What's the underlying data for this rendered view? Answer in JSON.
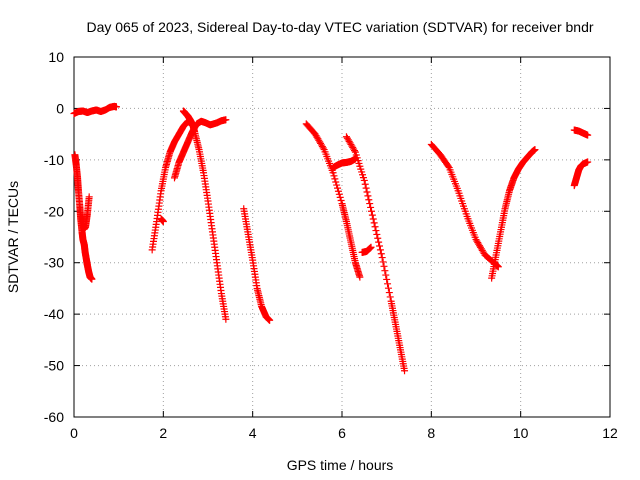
{
  "chart_data": {
    "type": "scatter",
    "title": "Day 065 of 2023, Sidereal Day-to-day VTEC variation (SDTVAR) for receiver bndr",
    "xlabel": "GPS time / hours",
    "ylabel": "SDTVAR / TECUs",
    "xlim": [
      0,
      12
    ],
    "ylim": [
      -60,
      10
    ],
    "xticks": [
      0,
      2,
      4,
      6,
      8,
      10,
      12
    ],
    "yticks": [
      10,
      0,
      -10,
      -20,
      -30,
      -40,
      -50,
      -60
    ],
    "grid": true,
    "marker": "+",
    "color": "#ff0000",
    "series": [
      {
        "x": [
          0.0,
          0.1,
          0.2,
          0.3,
          0.4,
          0.5,
          0.6,
          0.7,
          0.8,
          0.9,
          0.95
        ],
        "y": [
          -1.0,
          -0.6,
          -0.5,
          -0.8,
          -0.5,
          -0.3,
          -0.6,
          -0.3,
          0.2,
          0.4,
          0.3
        ]
      },
      {
        "x": [
          0.02,
          0.05,
          0.08,
          0.1,
          0.13,
          0.15,
          0.18,
          0.2,
          0.23,
          0.25,
          0.28,
          0.3,
          0.33,
          0.36,
          0.4
        ],
        "y": [
          -9.0,
          -11.0,
          -13.5,
          -16.0,
          -19.0,
          -21.5,
          -24.0,
          -25.5,
          -26.5,
          -28.0,
          -29.5,
          -30.5,
          -31.8,
          -32.8,
          -33.2
        ]
      },
      {
        "x": [
          0.18,
          0.22,
          0.26,
          0.3,
          0.34
        ],
        "y": [
          -21.0,
          -23.5,
          -23.0,
          -20.5,
          -17.2
        ]
      },
      {
        "x": [
          1.75,
          1.85,
          1.95,
          2.05,
          2.15,
          2.25,
          2.35,
          2.45,
          2.55,
          2.6
        ],
        "y": [
          -27.5,
          -22.0,
          -16.0,
          -11.5,
          -8.5,
          -6.5,
          -5.0,
          -3.5,
          -2.5,
          -2.8
        ]
      },
      {
        "x": [
          1.95,
          2.0
        ],
        "y": [
          -21.5,
          -22.0
        ]
      },
      {
        "x": [
          2.25,
          2.35,
          2.45,
          2.55,
          2.65,
          2.75,
          2.85,
          2.95,
          3.05,
          3.2,
          3.3,
          3.4
        ],
        "y": [
          -13.5,
          -10.5,
          -8.5,
          -6.5,
          -4.5,
          -3.0,
          -2.5,
          -2.8,
          -3.2,
          -2.8,
          -2.4,
          -2.2
        ]
      },
      {
        "x": [
          2.45,
          2.5,
          2.55,
          2.6,
          2.65,
          2.7,
          2.8,
          2.9,
          3.0,
          3.1,
          3.2,
          3.3,
          3.4
        ],
        "y": [
          -0.5,
          -1.0,
          -1.5,
          -2.2,
          -3.0,
          -4.5,
          -8.0,
          -12.5,
          -18.0,
          -24.0,
          -30.0,
          -36.0,
          -41.0
        ]
      },
      {
        "x": [
          3.8,
          3.9,
          4.0,
          4.1,
          4.2,
          4.3,
          4.38
        ],
        "y": [
          -19.5,
          -24.5,
          -29.5,
          -35.0,
          -38.5,
          -40.5,
          -41.2
        ]
      },
      {
        "x": [
          5.2,
          5.4,
          5.6,
          5.8,
          6.0,
          6.1,
          6.2,
          6.3,
          6.4
        ],
        "y": [
          -3.0,
          -5.0,
          -8.0,
          -12.5,
          -18.5,
          -22.0,
          -26.0,
          -30.0,
          -32.8
        ]
      },
      {
        "x": [
          5.8,
          5.9,
          6.0,
          6.1,
          6.2,
          6.3
        ],
        "y": [
          -11.5,
          -11.0,
          -10.6,
          -10.5,
          -10.3,
          -9.8
        ]
      },
      {
        "x": [
          6.1,
          6.3,
          6.5,
          6.7,
          6.9,
          7.1,
          7.2,
          7.3,
          7.4
        ],
        "y": [
          -5.5,
          -8.5,
          -14.0,
          -21.5,
          -29.0,
          -37.5,
          -42.0,
          -46.5,
          -51.0
        ]
      },
      {
        "x": [
          6.45,
          6.55,
          6.65
        ],
        "y": [
          -28.0,
          -27.8,
          -27.0
        ]
      },
      {
        "x": [
          8.0,
          8.2,
          8.4,
          8.6,
          8.8,
          9.0,
          9.2,
          9.4,
          9.5
        ],
        "y": [
          -7.0,
          -9.0,
          -11.5,
          -16.0,
          -21.0,
          -25.5,
          -28.5,
          -30.0,
          -30.8
        ]
      },
      {
        "x": [
          9.35,
          9.45,
          9.55,
          9.65,
          9.75,
          9.85,
          9.95,
          10.05,
          10.15,
          10.25,
          10.32
        ],
        "y": [
          -33.0,
          -28.5,
          -24.0,
          -19.5,
          -16.0,
          -13.5,
          -11.8,
          -10.5,
          -9.5,
          -8.5,
          -8.0
        ]
      },
      {
        "x": [
          11.2,
          11.3,
          11.4,
          11.5
        ],
        "y": [
          -4.2,
          -4.4,
          -4.8,
          -5.2
        ]
      },
      {
        "x": [
          11.2,
          11.25,
          11.3,
          11.35,
          11.4,
          11.5
        ],
        "y": [
          -15.0,
          -13.5,
          -12.0,
          -11.2,
          -10.8,
          -10.4
        ]
      }
    ]
  }
}
